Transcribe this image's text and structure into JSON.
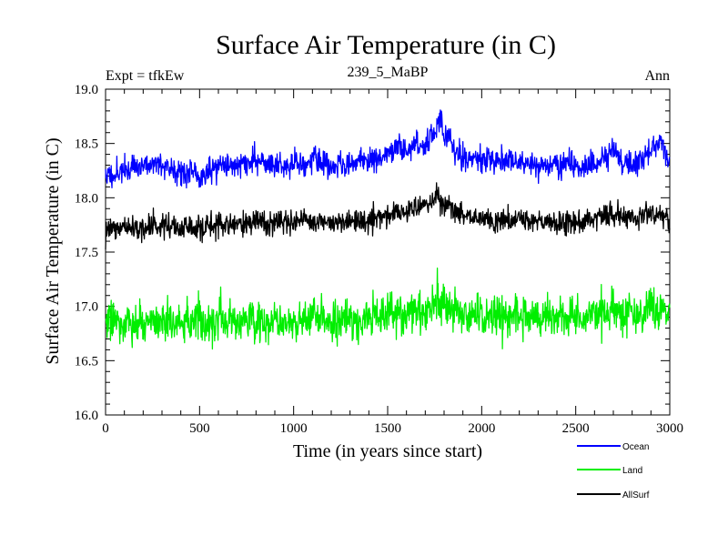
{
  "chart_data": {
    "type": "line",
    "title": "Surface Air Temperature (in C)",
    "subtitle_left": "Expt = tfkEw",
    "subtitle_center": "239_5_MaBP",
    "subtitle_right": "Ann",
    "xlabel": "Time (in years since start)",
    "ylabel": "Surface Air Temperature (in C)",
    "xlim": [
      0,
      3000
    ],
    "ylim": [
      16.0,
      19.0
    ],
    "x_ticks": [
      "0",
      "500",
      "1000",
      "1500",
      "2000",
      "2500",
      "3000"
    ],
    "y_ticks": [
      "16.0",
      "16.5",
      "17.0",
      "17.5",
      "18.0",
      "18.5",
      "19.0"
    ],
    "grid": false,
    "legend_position": "below-right",
    "series": [
      {
        "name": "Ocean",
        "color": "#0000ff",
        "x": [
          0,
          100,
          200,
          300,
          400,
          500,
          600,
          700,
          800,
          900,
          1000,
          1100,
          1200,
          1300,
          1400,
          1500,
          1550,
          1600,
          1700,
          1750,
          1780,
          1800,
          1900,
          2000,
          2100,
          2200,
          2300,
          2400,
          2500,
          2600,
          2650,
          2700,
          2750,
          2800,
          2900,
          2950,
          3000
        ],
        "values": [
          18.2,
          18.25,
          18.3,
          18.3,
          18.25,
          18.2,
          18.3,
          18.3,
          18.35,
          18.3,
          18.3,
          18.35,
          18.3,
          18.3,
          18.35,
          18.4,
          18.45,
          18.45,
          18.5,
          18.6,
          18.75,
          18.6,
          18.35,
          18.35,
          18.35,
          18.3,
          18.3,
          18.3,
          18.3,
          18.3,
          18.35,
          18.45,
          18.3,
          18.3,
          18.45,
          18.55,
          18.3
        ]
      },
      {
        "name": "Land",
        "color": "#00ee00",
        "x": [
          0,
          100,
          200,
          300,
          400,
          500,
          600,
          700,
          800,
          900,
          1000,
          1100,
          1200,
          1300,
          1400,
          1500,
          1600,
          1700,
          1800,
          1900,
          2000,
          2100,
          2200,
          2300,
          2400,
          2500,
          2600,
          2700,
          2800,
          2900,
          3000
        ],
        "values": [
          16.85,
          16.85,
          16.82,
          16.85,
          16.85,
          16.85,
          16.85,
          16.86,
          16.87,
          16.86,
          16.87,
          16.88,
          16.88,
          16.88,
          16.9,
          16.92,
          16.93,
          16.97,
          17.0,
          16.93,
          16.9,
          16.9,
          16.9,
          16.9,
          16.9,
          16.9,
          16.92,
          16.95,
          16.93,
          16.95,
          16.97
        ]
      },
      {
        "name": "AllSurf",
        "color": "#000000",
        "x": [
          0,
          100,
          200,
          300,
          400,
          500,
          600,
          700,
          800,
          900,
          1000,
          1100,
          1200,
          1300,
          1400,
          1500,
          1600,
          1700,
          1750,
          1800,
          1900,
          2000,
          2100,
          2200,
          2300,
          2400,
          2500,
          2600,
          2700,
          2800,
          2900,
          3000
        ],
        "values": [
          17.7,
          17.72,
          17.72,
          17.75,
          17.72,
          17.7,
          17.75,
          17.75,
          17.78,
          17.75,
          17.78,
          17.78,
          17.78,
          17.78,
          17.8,
          17.85,
          17.88,
          17.92,
          18.0,
          17.95,
          17.82,
          17.8,
          17.8,
          17.78,
          17.78,
          17.78,
          17.78,
          17.8,
          17.85,
          17.8,
          17.85,
          17.82
        ]
      }
    ],
    "noise": {
      "Ocean": 0.09,
      "Land": 0.14,
      "AllSurf": 0.08
    }
  }
}
